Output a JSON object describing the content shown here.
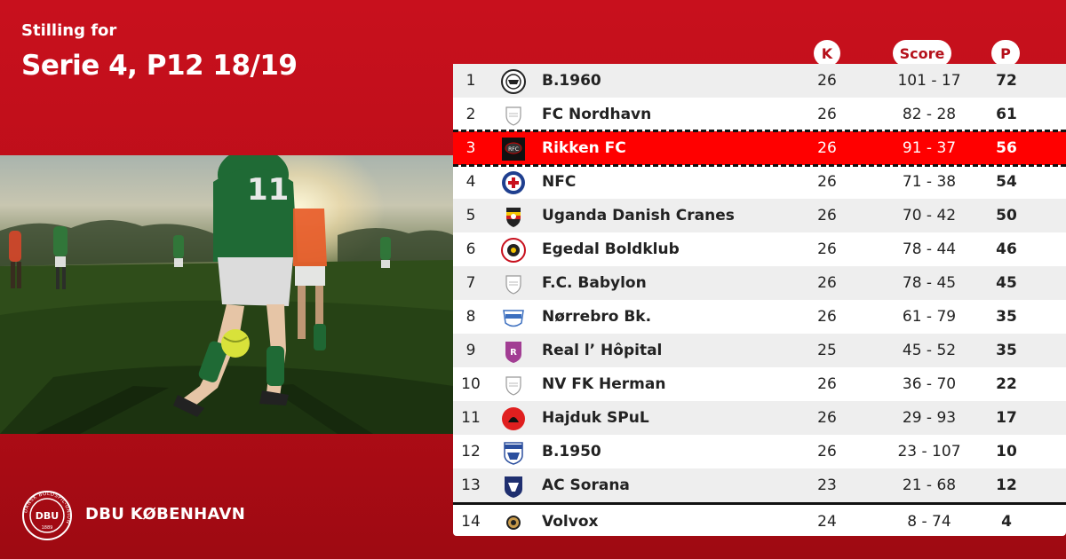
{
  "header": {
    "subtitle": "Stilling for",
    "title": "Serie 4, P12 18/19"
  },
  "columns": {
    "k": "K",
    "score": "Score",
    "p": "P"
  },
  "brand": {
    "name": "DBU KØBENHAVN",
    "badge_text": "DBU",
    "badge_ring_text": "DANSK BOLDSPIL-UNION",
    "badge_year": "1889"
  },
  "colors": {
    "brand_red": "#c8101d",
    "highlight_red": "#ff0000",
    "row_alt": "#eeeeee"
  },
  "standings": [
    {
      "pos": "1",
      "team": "B.1960",
      "k": "26",
      "score": "101 - 17",
      "p": "72",
      "crest": "b1960-crest-icon"
    },
    {
      "pos": "2",
      "team": "FC Nordhavn",
      "k": "26",
      "score": "82 - 28",
      "p": "61",
      "crest": "generic-shield-icon"
    },
    {
      "pos": "3",
      "team": "Rikken FC",
      "k": "26",
      "score": "91 - 37",
      "p": "56",
      "crest": "rikken-crest-icon"
    },
    {
      "pos": "4",
      "team": "NFC",
      "k": "26",
      "score": "71 - 38",
      "p": "54",
      "crest": "nfc-crest-icon"
    },
    {
      "pos": "5",
      "team": "Uganda Danish Cranes",
      "k": "26",
      "score": "70 - 42",
      "p": "50",
      "crest": "uganda-crest-icon"
    },
    {
      "pos": "6",
      "team": "Egedal Boldklub",
      "k": "26",
      "score": "78 - 44",
      "p": "46",
      "crest": "egedal-crest-icon"
    },
    {
      "pos": "7",
      "team": "F.C. Babylon",
      "k": "26",
      "score": "78 - 45",
      "p": "45",
      "crest": "generic-shield-icon"
    },
    {
      "pos": "8",
      "team": "Nørrebro Bk.",
      "k": "26",
      "score": "61 - 79",
      "p": "35",
      "crest": "norrebro-crest-icon"
    },
    {
      "pos": "9",
      "team": "Real l’ Hôpital",
      "k": "25",
      "score": "45 - 52",
      "p": "35",
      "crest": "real-hopital-crest-icon"
    },
    {
      "pos": "10",
      "team": "NV FK Herman",
      "k": "26",
      "score": "36 - 70",
      "p": "22",
      "crest": "generic-shield-icon"
    },
    {
      "pos": "11",
      "team": "Hajduk SPuL",
      "k": "26",
      "score": "29 - 93",
      "p": "17",
      "crest": "hajduk-crest-icon"
    },
    {
      "pos": "12",
      "team": "B.1950",
      "k": "26",
      "score": "23 - 107",
      "p": "10",
      "crest": "b1950-crest-icon"
    },
    {
      "pos": "13",
      "team": "AC Sorana",
      "k": "23",
      "score": "21 - 68",
      "p": "12",
      "crest": "sorana-crest-icon"
    },
    {
      "pos": "14",
      "team": "Volvox",
      "k": "24",
      "score": "8 - 74",
      "p": "4",
      "crest": "volvox-crest-icon"
    }
  ]
}
